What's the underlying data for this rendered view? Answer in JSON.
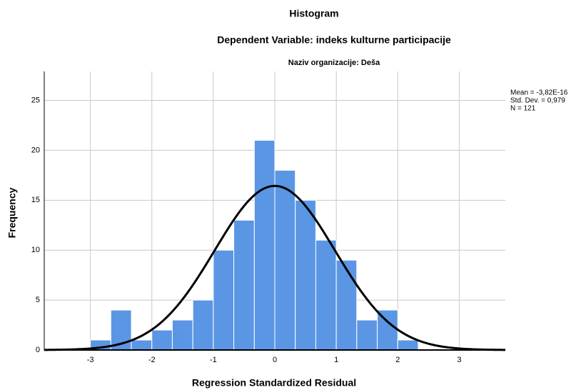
{
  "chart_data": {
    "type": "histogram",
    "title": "Histogram",
    "subtitle": "Dependent Variable: indeks kulturne participacije",
    "panel_title": "Naziv organizacije: Deša",
    "x_label": "Regression Standardized Residual",
    "y_label": "Frequency",
    "bins": [
      -3,
      -2.667,
      -2.333,
      -2,
      -1.667,
      -1.333,
      -1,
      -0.667,
      -0.333,
      0,
      0.333,
      0.667,
      1,
      1.333,
      1.667,
      2,
      2.333
    ],
    "values": [
      1,
      4,
      1,
      2,
      3,
      5,
      10,
      13,
      21,
      18,
      15,
      11,
      9,
      3,
      4,
      1
    ],
    "color": "#5b96e5",
    "curve_color": "#000000",
    "xlim": [
      -3.75,
      3.75
    ],
    "xticks": [
      -3,
      -2,
      -1,
      0,
      1,
      2,
      3
    ],
    "ylim": [
      0,
      27.9
    ],
    "yticks": [
      0,
      5,
      10,
      15,
      20,
      25
    ],
    "grid": true,
    "normal_curve": {
      "mean": {
        "value": -3.82e-16,
        "label": "Mean = -3,82E-16"
      },
      "std": {
        "value": 0.979,
        "label": "Std. Dev. = 0,979"
      },
      "n": {
        "value": 121,
        "label": "N = 121"
      }
    }
  }
}
